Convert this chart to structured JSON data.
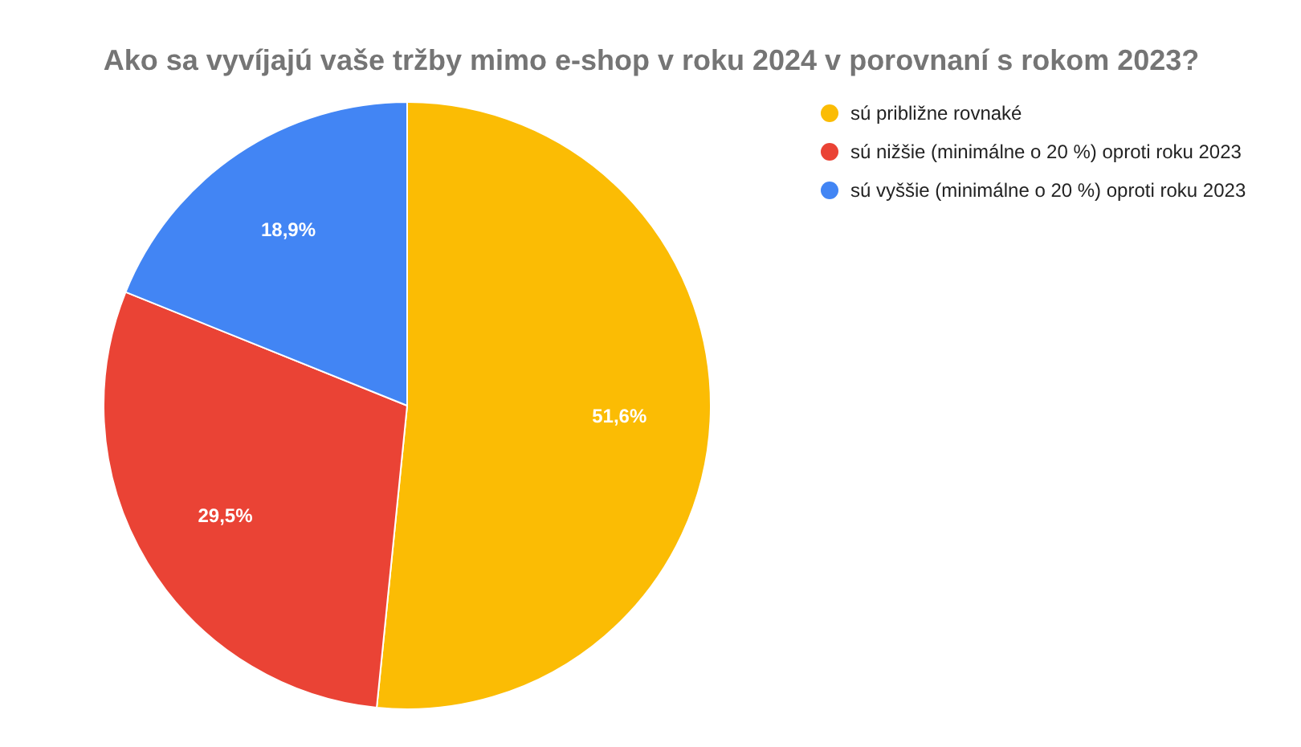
{
  "chart_data": {
    "type": "pie",
    "title": "Ako sa vyvíjajú vaše tržby mimo e-shop v roku 2024 v porovnaní s rokom 2023?",
    "categories": [
      "sú približne rovnaké",
      "sú nižšie (minimálne o 20 %) oproti roku 2023",
      "sú vyššie (minimálne o 20 %) oproti roku 2023"
    ],
    "values": [
      51.6,
      29.5,
      18.9
    ],
    "value_labels": [
      "51,6%",
      "29,5%",
      "18,9%"
    ],
    "colors": [
      "#fbbc04",
      "#ea4335",
      "#4285f4"
    ],
    "legend": "right"
  }
}
